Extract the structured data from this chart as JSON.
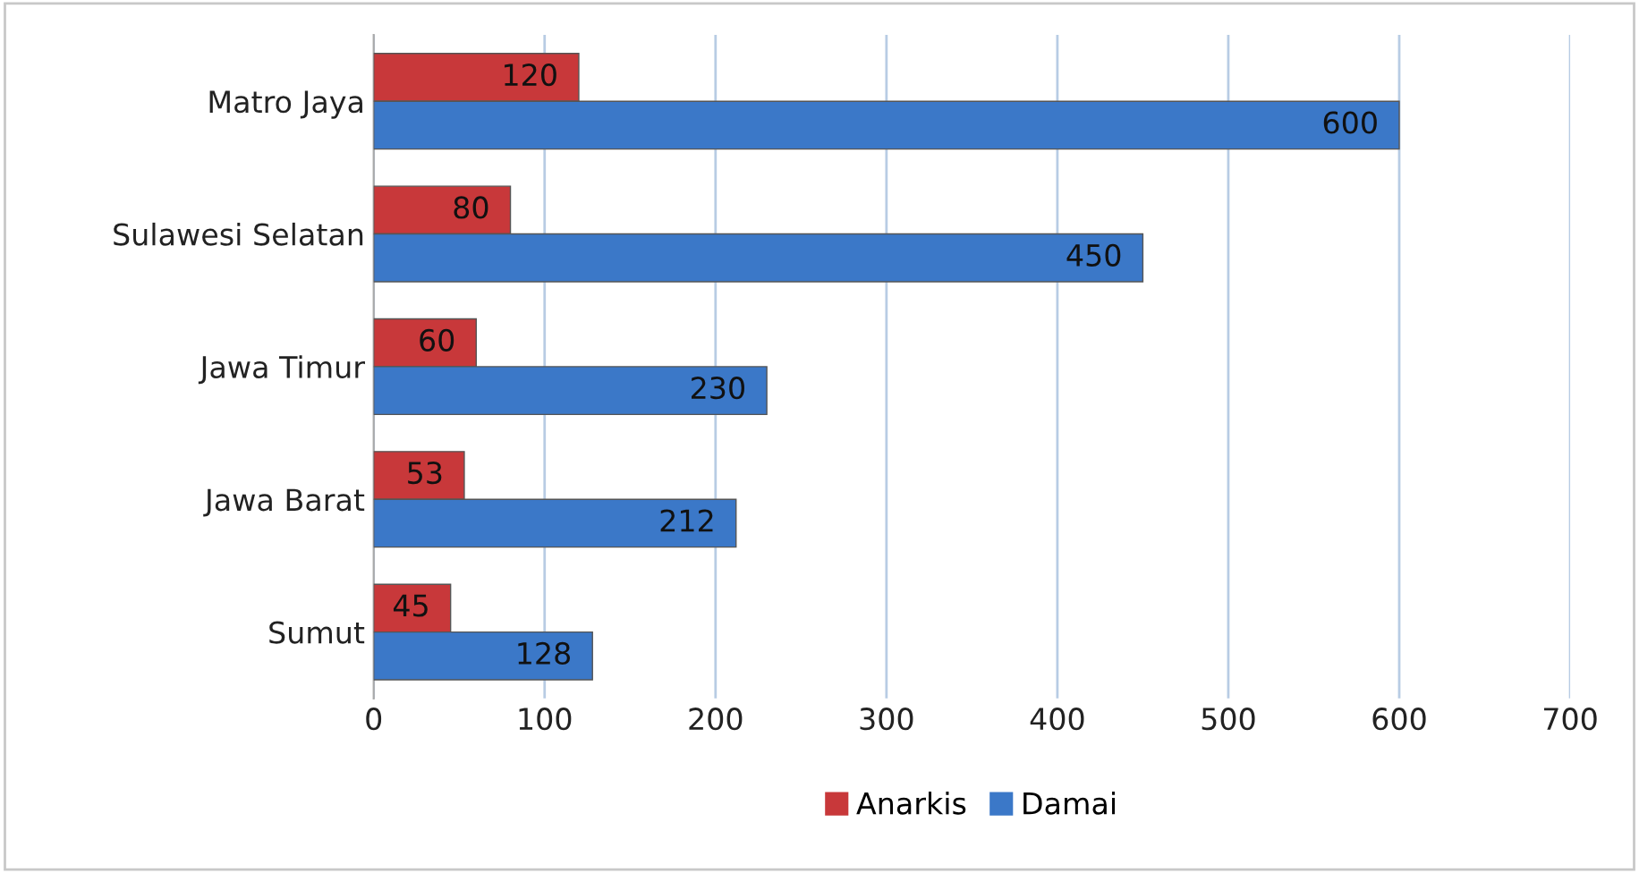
{
  "chart_data": {
    "type": "bar",
    "orientation": "horizontal",
    "categories": [
      "Matro Jaya",
      "Sulawesi Selatan",
      "Jawa Timur",
      "Jawa Barat",
      "Sumut"
    ],
    "series": [
      {
        "name": "Anarkis",
        "color": "#c8383a",
        "values": [
          120,
          80,
          60,
          53,
          45
        ]
      },
      {
        "name": "Damai",
        "color": "#3b78c8",
        "values": [
          600,
          450,
          230,
          212,
          128
        ]
      }
    ],
    "xlim": [
      0,
      700
    ],
    "xticks": [
      0,
      100,
      200,
      300,
      400,
      500,
      600,
      700
    ],
    "grid": "x",
    "legend": "bottom",
    "data_labels": true
  }
}
